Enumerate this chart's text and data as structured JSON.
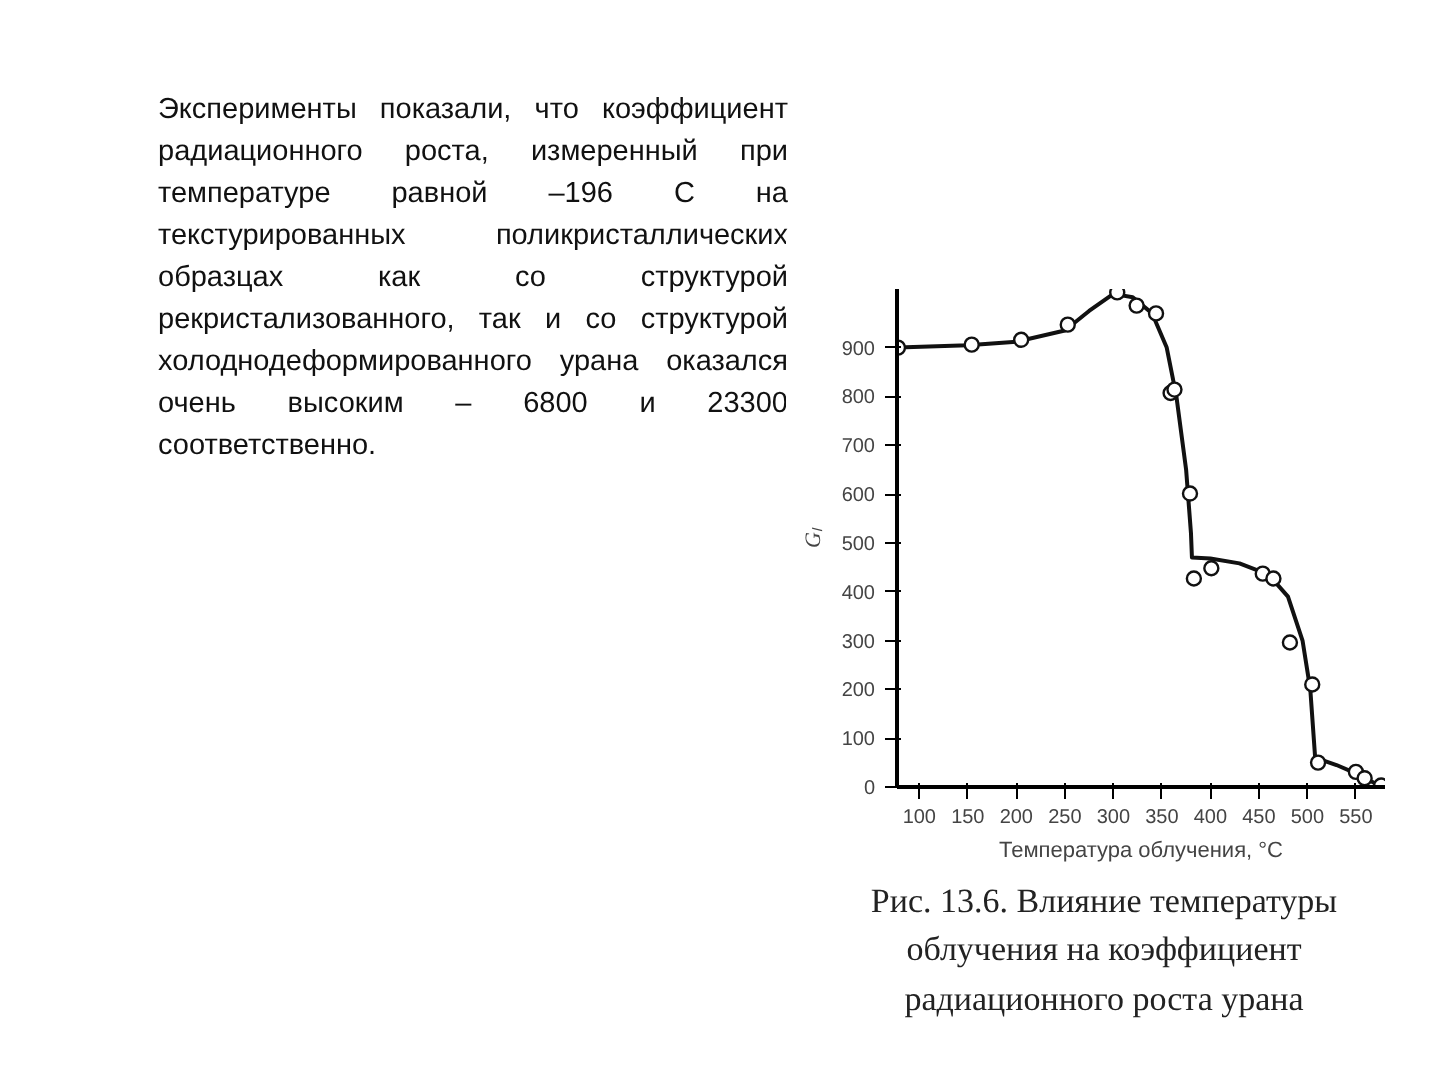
{
  "chart_data": {
    "type": "scatter",
    "xlabel": "Температура облучения, °С",
    "ylabel": "Gₗ",
    "xlim": [
      77,
      580
    ],
    "ylim": [
      0,
      1020
    ],
    "xticks": [
      100,
      150,
      200,
      250,
      300,
      350,
      400,
      450,
      500,
      550
    ],
    "yticks": [
      0,
      100,
      200,
      300,
      400,
      500,
      600,
      700,
      800,
      900
    ],
    "grid": false,
    "series": [
      {
        "type": "line",
        "color": "#111111",
        "marker": "none",
        "line_style": "solid",
        "x": [
          78,
          150,
          200,
          250,
          275,
          300,
          320,
          340,
          355,
          365,
          375,
          380,
          381,
          400,
          430,
          460,
          480,
          495,
          503,
          508,
          530,
          550,
          575
        ],
        "values": [
          900,
          905,
          912,
          935,
          975,
          1010,
          1003,
          970,
          900,
          800,
          650,
          520,
          470,
          468,
          458,
          435,
          390,
          300,
          200,
          60,
          45,
          28,
          2
        ]
      },
      {
        "color": "#111111",
        "marker": "circle",
        "x": [
          78,
          154,
          205,
          253,
          304,
          324,
          344,
          359,
          363,
          379,
          383,
          401,
          454,
          465,
          482,
          505,
          511,
          550,
          559,
          576
        ],
        "values": [
          900,
          906,
          916,
          947,
          1013,
          986,
          970,
          807,
          814,
          601,
          427,
          448,
          437,
          427,
          296,
          210,
          50,
          31,
          18,
          3
        ]
      }
    ],
    "annotations": [
      "Эксперименты показали, что коэффициент радиационного роста, измеренный при температуре равной –196 С на текстурированных поликристаллических образцах как со структурой рекристализованного, так и со структурой холоднодеформированного урана оказался очень высоким – 6800 и 23300 соответственно.",
      "Рис. 13.6. Влияние температуры облучения на коэффициент радиационного роста урана"
    ]
  }
}
